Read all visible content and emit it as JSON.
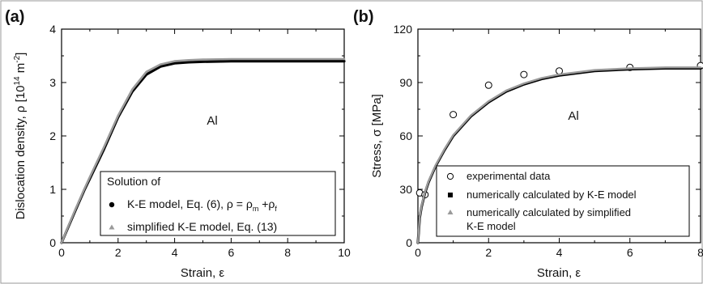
{
  "chart_data": [
    {
      "panel_label": "(a)",
      "type": "line",
      "xlabel": "Strain, ε",
      "ylabel": "Dislocation density, ρ [10¹⁴ m⁻²]",
      "xlim": [
        0,
        10
      ],
      "ylim": [
        0,
        4
      ],
      "xticks": [
        "0",
        "2",
        "4",
        "6",
        "8",
        "10"
      ],
      "yticks": [
        "0",
        "1",
        "2",
        "3",
        "4"
      ],
      "annotation": "Al",
      "legend": {
        "placement": "bottom-right",
        "title": "Solution of",
        "entries": [
          "K-E model, Eq. (6), ρ = ρm +ρf",
          "simplified K-E model, Eq. (13)"
        ]
      },
      "series": [
        {
          "name": "K-E model, Eq. (6), ρ = ρm +ρf",
          "marker": "filled-circle",
          "color": "#000000",
          "x": [
            0,
            0.2,
            0.5,
            0.8,
            1.0,
            1.5,
            2.0,
            2.5,
            3.0,
            3.5,
            4.0,
            4.5,
            5.0,
            6.0,
            7.0,
            8.0,
            9.0,
            10.0
          ],
          "y": [
            0,
            0.25,
            0.62,
            0.98,
            1.2,
            1.75,
            2.35,
            2.83,
            3.15,
            3.3,
            3.36,
            3.38,
            3.39,
            3.4,
            3.4,
            3.4,
            3.4,
            3.4
          ]
        },
        {
          "name": "simplified K-E model, Eq. (13)",
          "marker": "triangle",
          "color": "#9a9a9a",
          "x": [
            0,
            0.2,
            0.5,
            0.8,
            1.0,
            1.5,
            2.0,
            2.5,
            3.0,
            3.5,
            4.0,
            4.5,
            5.0,
            6.0,
            7.0,
            8.0,
            9.0,
            10.0
          ],
          "y": [
            0,
            0.26,
            0.64,
            1.0,
            1.23,
            1.79,
            2.38,
            2.87,
            3.2,
            3.34,
            3.4,
            3.42,
            3.43,
            3.44,
            3.44,
            3.44,
            3.44,
            3.44
          ]
        }
      ]
    },
    {
      "panel_label": "(b)",
      "type": "line",
      "xlabel": "Strain, ε",
      "ylabel": "Stress, σ [MPa]",
      "xlim": [
        0,
        8
      ],
      "ylim": [
        0,
        120
      ],
      "xticks": [
        "0",
        "2",
        "4",
        "6",
        "8"
      ],
      "yticks": [
        "0",
        "30",
        "60",
        "90",
        "120"
      ],
      "annotation": "Al",
      "legend": {
        "placement": "bottom-right",
        "entries": [
          "experimental data",
          "numerically calculated by K-E model",
          "numerically calculated by simplified K-E model"
        ]
      },
      "series": [
        {
          "name": "experimental data",
          "marker": "open-circle",
          "color": "#000000",
          "x": [
            0.05,
            0.2,
            1,
            2,
            3,
            4,
            6,
            8
          ],
          "y": [
            28,
            27,
            72,
            88.5,
            94.5,
            96.5,
            98.5,
            99.5
          ]
        },
        {
          "name": "numerically calculated by K-E model",
          "marker": "filled-square",
          "color": "#000000",
          "x": [
            0,
            0.05,
            0.1,
            0.2,
            0.3,
            0.5,
            0.75,
            1.0,
            1.5,
            2.0,
            2.5,
            3.0,
            3.5,
            4.0,
            5.0,
            6.0,
            7.0,
            8.0
          ],
          "y": [
            0,
            14,
            20,
            28,
            34,
            43,
            52,
            60,
            71,
            79,
            85,
            89,
            92,
            94,
            96.5,
            97.5,
            98,
            98
          ]
        },
        {
          "name": "numerically calculated by simplified K-E model",
          "marker": "triangle",
          "color": "#9a9a9a",
          "x": [
            0,
            0.05,
            0.1,
            0.2,
            0.3,
            0.5,
            0.75,
            1.0,
            1.5,
            2.0,
            2.5,
            3.0,
            3.5,
            4.0,
            5.0,
            6.0,
            7.0,
            8.0
          ],
          "y": [
            0,
            14.5,
            20.5,
            28.5,
            34.5,
            43.5,
            52.5,
            60.5,
            71.5,
            79.5,
            85.5,
            89.5,
            92.5,
            94.5,
            97,
            98,
            98.5,
            98.5
          ]
        }
      ]
    }
  ]
}
